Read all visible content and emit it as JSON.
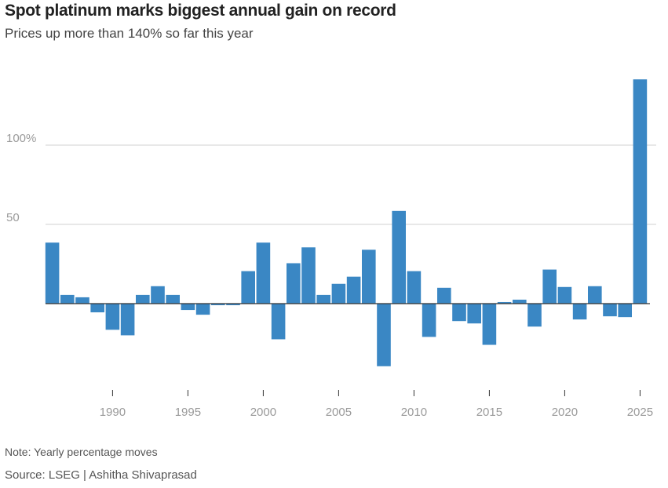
{
  "chart_data": {
    "type": "bar",
    "title": "Spot platinum marks biggest annual gain on record",
    "subtitle": "Prices up more than 140% so far this year",
    "xlabel": "",
    "ylabel": "",
    "ylim": [
      -55,
      145
    ],
    "y_ticks": [
      {
        "value": 50,
        "label": "50"
      },
      {
        "value": 100,
        "label": "100%"
      }
    ],
    "x_ticks": [
      {
        "value": 1990,
        "label": "1990"
      },
      {
        "value": 1995,
        "label": "1995"
      },
      {
        "value": 2000,
        "label": "2000"
      },
      {
        "value": 2005,
        "label": "2005"
      },
      {
        "value": 2010,
        "label": "2010"
      },
      {
        "value": 2015,
        "label": "2015"
      },
      {
        "value": 2020,
        "label": "2020"
      },
      {
        "value": 2025,
        "label": "2025"
      }
    ],
    "bar_color": "#3a87c4",
    "grid": true,
    "categories": [
      1986,
      1987,
      1988,
      1989,
      1990,
      1991,
      1992,
      1993,
      1994,
      1995,
      1996,
      1997,
      1998,
      1999,
      2000,
      2001,
      2002,
      2003,
      2004,
      2005,
      2006,
      2007,
      2008,
      2009,
      2010,
      2011,
      2012,
      2013,
      2014,
      2015,
      2016,
      2017,
      2018,
      2019,
      2020,
      2021,
      2022,
      2023,
      2024,
      2025
    ],
    "values": [
      38.5,
      5.5,
      4,
      -5.5,
      -16.5,
      -20,
      5.5,
      11,
      5.5,
      -4,
      -7,
      -1,
      -1,
      20.5,
      38.5,
      -22.5,
      25.5,
      35.5,
      5.5,
      12.5,
      17,
      34,
      -39.5,
      58.5,
      20.5,
      -21,
      10,
      -11,
      -12.5,
      -26,
      1,
      2.5,
      -14.5,
      21.5,
      10.5,
      -10,
      11,
      -8,
      -8.5,
      141.5
    ]
  },
  "note": "Note: Yearly percentage moves",
  "source": "Source: LSEG | Ashitha Shivaprasad"
}
